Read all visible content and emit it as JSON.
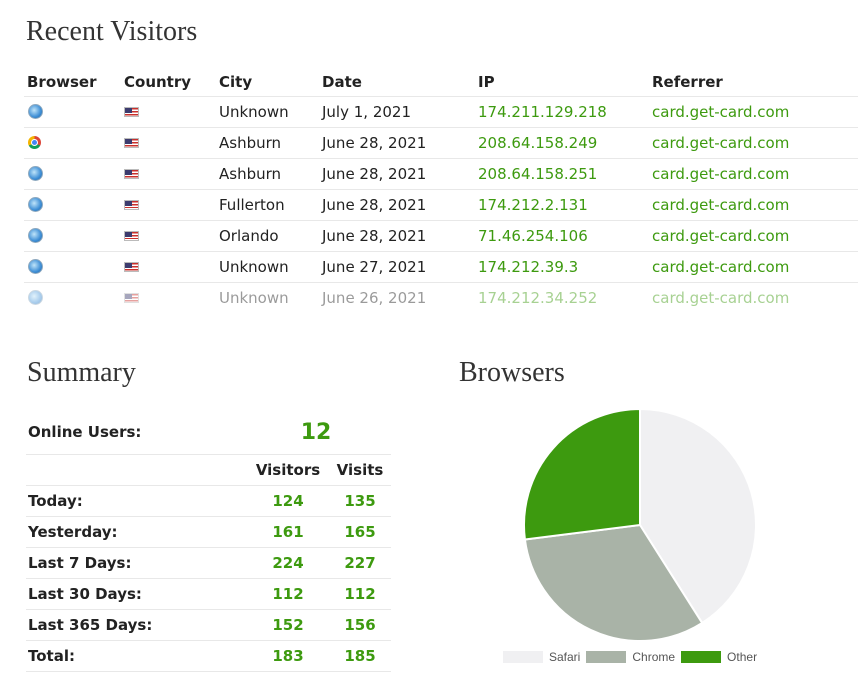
{
  "recent": {
    "title": "Recent Visitors",
    "headers": {
      "browser": "Browser",
      "country": "Country",
      "city": "City",
      "date": "Date",
      "ip": "IP",
      "referrer": "Referrer"
    },
    "rows": [
      {
        "browser_icon": "safari-icon",
        "flag_icon": "us-flag-icon",
        "city": "Unknown",
        "date": "July 1, 2021",
        "ip": "174.211.129.218",
        "referrer": "card.get-card.com"
      },
      {
        "browser_icon": "chrome-icon",
        "flag_icon": "us-flag-icon",
        "city": "Ashburn",
        "date": "June 28, 2021",
        "ip": "208.64.158.249",
        "referrer": "card.get-card.com"
      },
      {
        "browser_icon": "safari-icon",
        "flag_icon": "us-flag-icon",
        "city": "Ashburn",
        "date": "June 28, 2021",
        "ip": "208.64.158.251",
        "referrer": "card.get-card.com"
      },
      {
        "browser_icon": "safari-icon",
        "flag_icon": "us-flag-icon",
        "city": "Fullerton",
        "date": "June 28, 2021",
        "ip": "174.212.2.131",
        "referrer": "card.get-card.com"
      },
      {
        "browser_icon": "safari-icon",
        "flag_icon": "us-flag-icon",
        "city": "Orlando",
        "date": "June 28, 2021",
        "ip": "71.46.254.106",
        "referrer": "card.get-card.com"
      },
      {
        "browser_icon": "safari-icon",
        "flag_icon": "us-flag-icon",
        "city": "Unknown",
        "date": "June 27, 2021",
        "ip": "174.212.39.3",
        "referrer": "card.get-card.com"
      },
      {
        "browser_icon": "safari-icon",
        "flag_icon": "us-flag-icon",
        "city": "Unknown",
        "date": "June 26, 2021",
        "ip": "174.212.34.252",
        "referrer": "card.get-card.com"
      }
    ]
  },
  "summary": {
    "title": "Summary",
    "online_label": "Online Users:",
    "online_value": "12",
    "col_visitors": "Visitors",
    "col_visits": "Visits",
    "rows": [
      {
        "label": "Today:",
        "visitors": "124",
        "visits": "135"
      },
      {
        "label": "Yesterday:",
        "visitors": "161",
        "visits": "165"
      },
      {
        "label": "Last 7 Days:",
        "visitors": "224",
        "visits": "227"
      },
      {
        "label": "Last 30 Days:",
        "visitors": "112",
        "visits": "112"
      },
      {
        "label": "Last 365 Days:",
        "visitors": "152",
        "visits": "156"
      },
      {
        "label": "Total:",
        "visitors": "183",
        "visits": "185"
      }
    ]
  },
  "browsers": {
    "title": "Browsers"
  },
  "colors": {
    "accent_green": "#3d9a0f",
    "safari": "#f0f0f2",
    "chrome": "#a9b3a7",
    "other": "#3d9a0f"
  },
  "chart_data": {
    "type": "pie",
    "title": "Browsers",
    "categories": [
      "Safari",
      "Chrome",
      "Other"
    ],
    "values": [
      41,
      32,
      27
    ],
    "colors": [
      "#f0f0f2",
      "#a9b3a7",
      "#3d9a0f"
    ],
    "legend": "bottom"
  }
}
